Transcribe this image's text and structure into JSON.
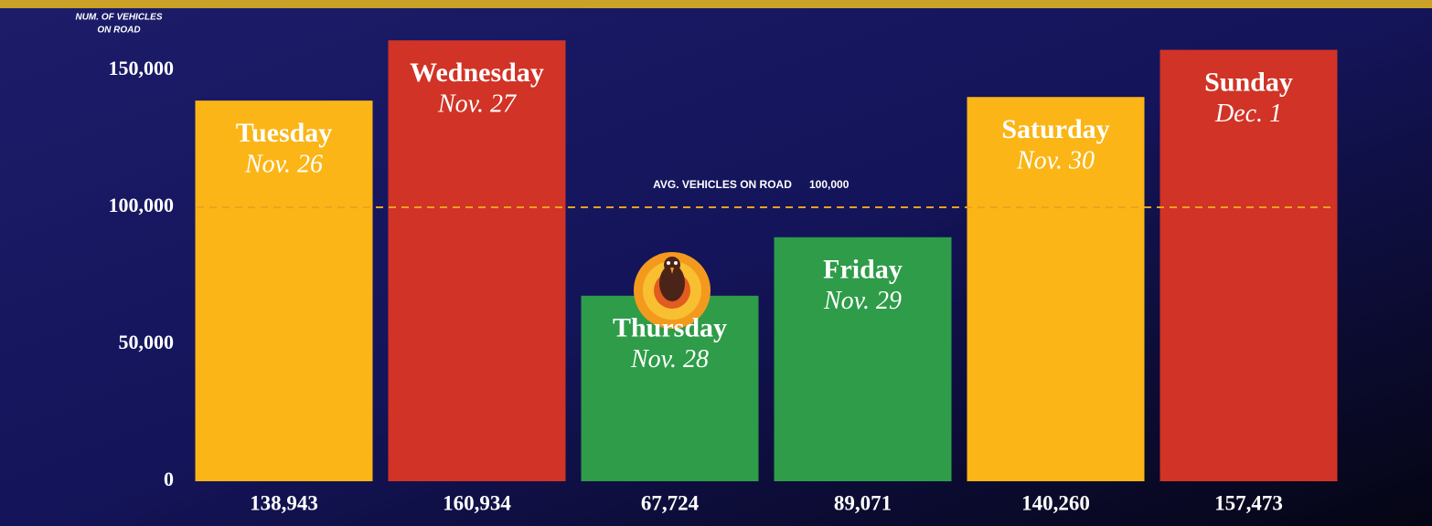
{
  "chart_data": {
    "type": "bar",
    "y_label": [
      "NUM. OF VEHICLES",
      "ON ROAD"
    ],
    "categories": [
      "Tuesday",
      "Wednesday",
      "Thursday",
      "Friday",
      "Saturday",
      "Sunday"
    ],
    "date_labels": [
      "Nov. 26",
      "Nov. 27",
      "Nov. 28",
      "Nov. 29",
      "Nov. 30",
      "Dec. 1"
    ],
    "values": [
      138943,
      160934,
      67724,
      89071,
      140260,
      157473
    ],
    "value_labels": [
      "138,943",
      "160,934",
      "67,724",
      "89,071",
      "140,260",
      "157,473"
    ],
    "colors": [
      "#fbb516",
      "#d13326",
      "#2e9c48",
      "#2e9c48",
      "#fbb516",
      "#d13326"
    ],
    "average": {
      "label": "AVG. VEHICLES ON ROAD",
      "value": 100000,
      "value_label": "100,000",
      "color": "#f0a020"
    },
    "ylim": [
      0,
      170000
    ],
    "yticks": [
      0,
      {
        "value": 50000,
        "label": "50,000"
      },
      {
        "value": 100000,
        "label": "100,000"
      },
      {
        "value": 150000,
        "label": "150,000"
      }
    ]
  }
}
